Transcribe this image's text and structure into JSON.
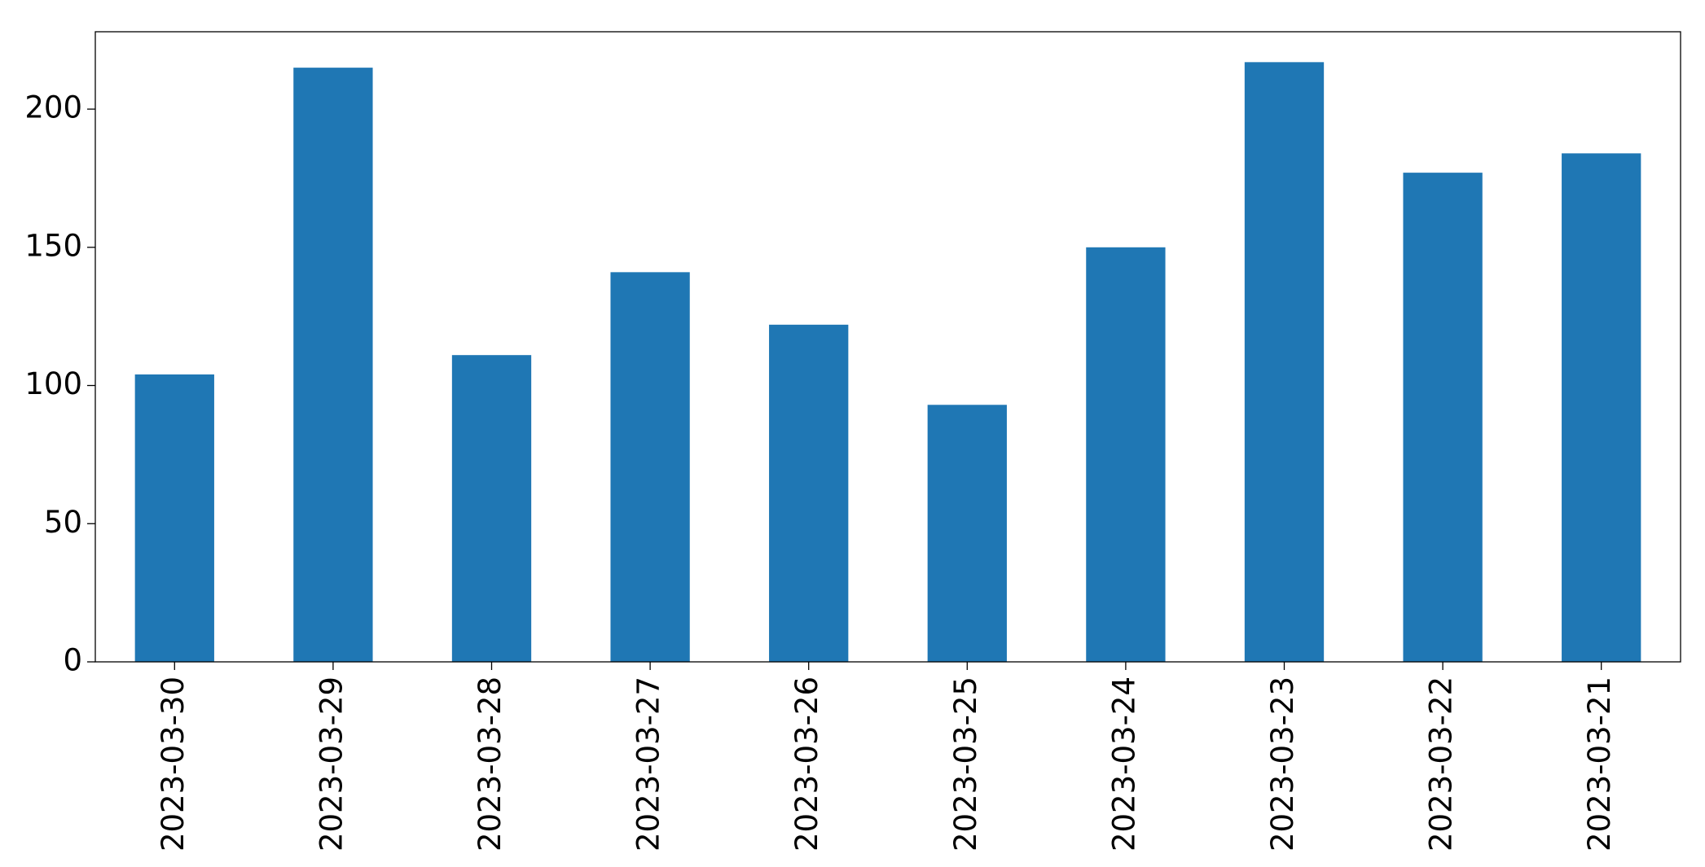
{
  "chart_data": {
    "type": "bar",
    "categories": [
      "2023-03-30",
      "2023-03-29",
      "2023-03-28",
      "2023-03-27",
      "2023-03-26",
      "2023-03-25",
      "2023-03-24",
      "2023-03-23",
      "2023-03-22",
      "2023-03-21"
    ],
    "values": [
      104,
      215,
      111,
      141,
      122,
      93,
      150,
      217,
      177,
      184
    ],
    "color": "#1f77b4",
    "ylim": [
      0,
      228
    ],
    "yticks": [
      0,
      50,
      100,
      150,
      200
    ],
    "grid": false
  }
}
